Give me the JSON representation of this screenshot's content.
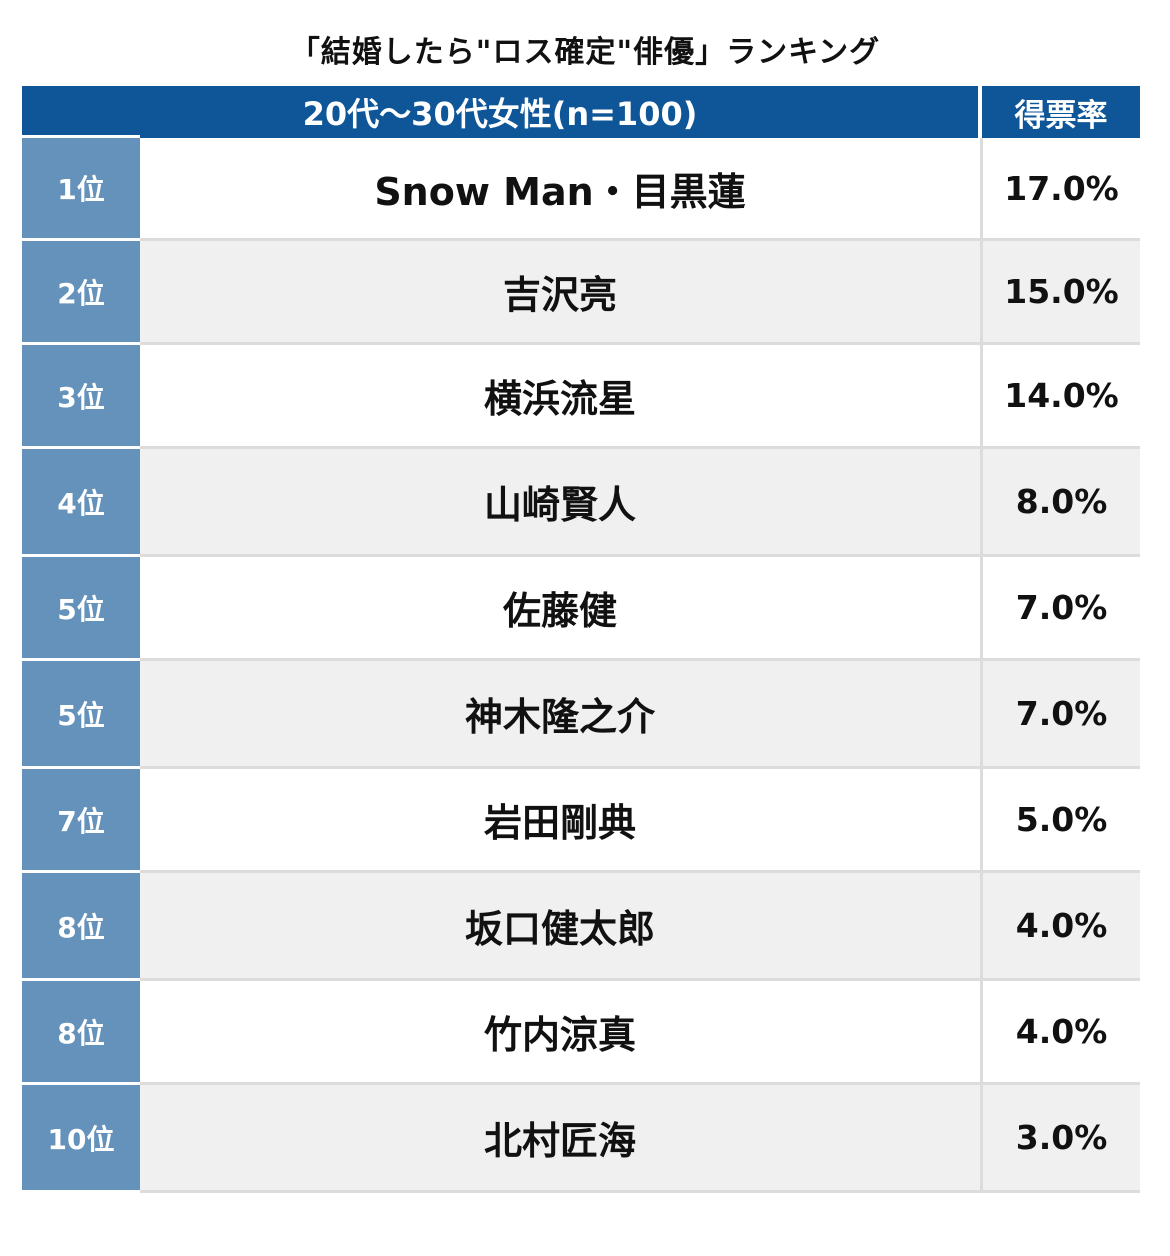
{
  "chart_data": {
    "type": "table",
    "title": "「結婚したら\"ロス確定\"俳優」ランキング",
    "column_headers": [
      "20代〜30代女性(n=100)",
      "得票率"
    ],
    "rows": [
      {
        "rank": "1位",
        "name": "Snow Man・目黒蓮",
        "share": "17.0%"
      },
      {
        "rank": "2位",
        "name": "吉沢亮",
        "share": "15.0%"
      },
      {
        "rank": "3位",
        "name": "横浜流星",
        "share": "14.0%"
      },
      {
        "rank": "4位",
        "name": "山崎賢人",
        "share": "8.0%"
      },
      {
        "rank": "5位",
        "name": "佐藤健",
        "share": "7.0%"
      },
      {
        "rank": "5位",
        "name": "神木隆之介",
        "share": "7.0%"
      },
      {
        "rank": "7位",
        "name": "岩田剛典",
        "share": "5.0%"
      },
      {
        "rank": "8位",
        "name": "坂口健太郎",
        "share": "4.0%"
      },
      {
        "rank": "8位",
        "name": "竹内涼真",
        "share": "4.0%"
      },
      {
        "rank": "10位",
        "name": "北村匠海",
        "share": "3.0%"
      }
    ],
    "values": [
      17.0,
      15.0,
      14.0,
      8.0,
      7.0,
      7.0,
      5.0,
      4.0,
      4.0,
      3.0
    ]
  },
  "colors": {
    "header_bg": "#0e5698",
    "rank_bg": "#6592ba",
    "shade_row": "#f0f0f0",
    "divider": "#dcdcdc"
  }
}
